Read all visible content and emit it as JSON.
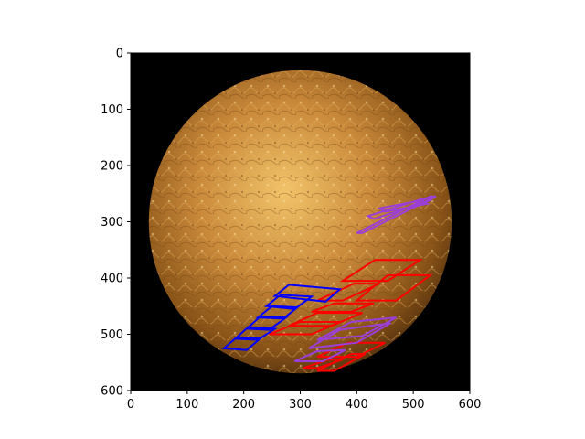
{
  "figure": {
    "background": "#ffffff",
    "image_background": "#000000",
    "planet_colors": {
      "highlight": "#f2c46a",
      "mid": "#c9893a",
      "shadow": "#8a5418",
      "dark": "#4a2a0c"
    }
  },
  "axes": {
    "xlim": [
      0,
      600
    ],
    "ylim": [
      600,
      0
    ],
    "x_ticks": [
      0,
      100,
      200,
      300,
      400,
      500,
      600
    ],
    "y_ticks": [
      0,
      100,
      200,
      300,
      400,
      500,
      600
    ],
    "x_tick_labels": [
      "0",
      "100",
      "200",
      "300",
      "400",
      "500",
      "600"
    ],
    "y_tick_labels": [
      "0",
      "100",
      "200",
      "300",
      "400",
      "500",
      "600"
    ]
  },
  "overlay_colors": {
    "red": "#ff0000",
    "blue": "#0000ff",
    "purple": "#9b3fd8"
  },
  "planet": {
    "center": [
      300,
      300
    ],
    "radius": 268
  },
  "overlays": [
    {
      "color": "purple",
      "points": [
        [
          400,
          320
        ],
        [
          530,
          255
        ],
        [
          540,
          255
        ],
        [
          410,
          320
        ]
      ]
    },
    {
      "color": "purple",
      "points": [
        [
          420,
          290
        ],
        [
          520,
          258
        ],
        [
          530,
          262
        ],
        [
          430,
          295
        ]
      ]
    },
    {
      "color": "purple",
      "points": [
        [
          440,
          276
        ],
        [
          515,
          262
        ],
        [
          525,
          268
        ],
        [
          450,
          282
        ]
      ]
    },
    {
      "color": "red",
      "points": [
        [
          375,
          405
        ],
        [
          432,
          368
        ],
        [
          512,
          368
        ],
        [
          455,
          405
        ]
      ]
    },
    {
      "color": "red",
      "points": [
        [
          400,
          440
        ],
        [
          455,
          395
        ],
        [
          530,
          395
        ],
        [
          470,
          440
        ]
      ]
    },
    {
      "color": "red",
      "points": [
        [
          330,
          440
        ],
        [
          395,
          410
        ],
        [
          440,
          410
        ],
        [
          375,
          440
        ]
      ]
    },
    {
      "color": "red",
      "points": [
        [
          320,
          460
        ],
        [
          360,
          445
        ],
        [
          430,
          445
        ],
        [
          390,
          460
        ]
      ]
    },
    {
      "color": "red",
      "points": [
        [
          280,
          485
        ],
        [
          330,
          462
        ],
        [
          410,
          462
        ],
        [
          355,
          485
        ]
      ]
    },
    {
      "color": "red",
      "points": [
        [
          245,
          500
        ],
        [
          300,
          478
        ],
        [
          370,
          478
        ],
        [
          320,
          500
        ]
      ]
    },
    {
      "color": "red",
      "points": [
        [
          330,
          540
        ],
        [
          385,
          515
        ],
        [
          450,
          515
        ],
        [
          400,
          540
        ]
      ]
    },
    {
      "color": "red",
      "points": [
        [
          330,
          565
        ],
        [
          390,
          535
        ],
        [
          415,
          535
        ],
        [
          360,
          565
        ]
      ]
    },
    {
      "color": "red",
      "points": [
        [
          305,
          560
        ],
        [
          350,
          545
        ],
        [
          375,
          545
        ],
        [
          330,
          560
        ]
      ]
    },
    {
      "color": "blue",
      "points": [
        [
          255,
          432
        ],
        [
          280,
          412
        ],
        [
          370,
          420
        ],
        [
          345,
          442
        ]
      ]
    },
    {
      "color": "blue",
      "points": [
        [
          240,
          450
        ],
        [
          265,
          430
        ],
        [
          320,
          433
        ],
        [
          290,
          455
        ]
      ]
    },
    {
      "color": "blue",
      "points": [
        [
          225,
          470
        ],
        [
          250,
          450
        ],
        [
          295,
          452
        ],
        [
          270,
          472
        ]
      ]
    },
    {
      "color": "blue",
      "points": [
        [
          205,
          490
        ],
        [
          230,
          468
        ],
        [
          275,
          470
        ],
        [
          245,
          492
        ]
      ]
    },
    {
      "color": "blue",
      "points": [
        [
          185,
          508
        ],
        [
          208,
          487
        ],
        [
          255,
          490
        ],
        [
          225,
          510
        ]
      ]
    },
    {
      "color": "blue",
      "points": [
        [
          165,
          525
        ],
        [
          188,
          505
        ],
        [
          230,
          507
        ],
        [
          205,
          528
        ]
      ]
    },
    {
      "color": "purple",
      "points": [
        [
          315,
          525
        ],
        [
          370,
          492
        ],
        [
          460,
          480
        ],
        [
          400,
          515
        ]
      ]
    },
    {
      "color": "purple",
      "points": [
        [
          330,
          510
        ],
        [
          390,
          478
        ],
        [
          470,
          470
        ],
        [
          410,
          503
        ]
      ]
    },
    {
      "color": "purple",
      "points": [
        [
          290,
          548
        ],
        [
          330,
          530
        ],
        [
          380,
          528
        ],
        [
          340,
          548
        ]
      ]
    }
  ]
}
